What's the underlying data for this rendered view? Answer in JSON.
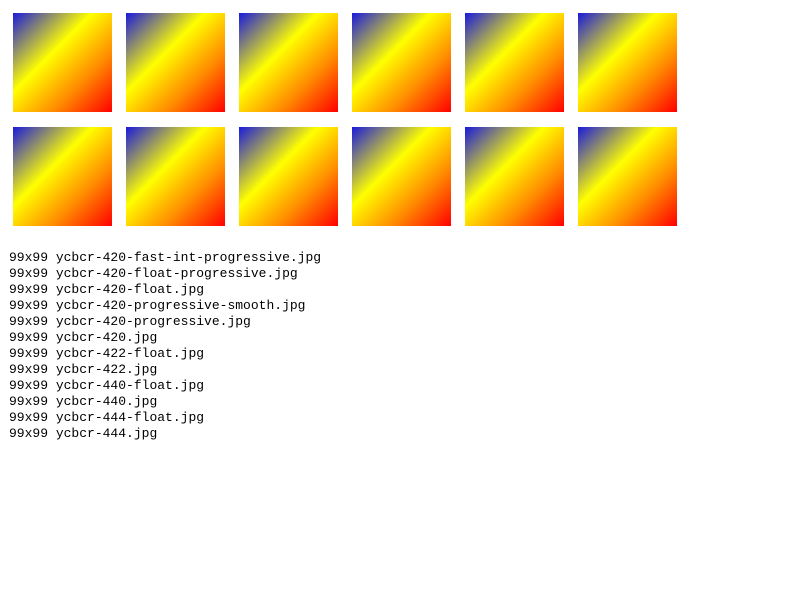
{
  "gradient": {
    "colors": [
      "#1a1adc",
      "#ffff00",
      "#ff8a00",
      "#ff0000"
    ]
  },
  "images": [
    {
      "icon": "gradient-image"
    },
    {
      "icon": "gradient-image"
    },
    {
      "icon": "gradient-image"
    },
    {
      "icon": "gradient-image"
    },
    {
      "icon": "gradient-image"
    },
    {
      "icon": "gradient-image"
    },
    {
      "icon": "gradient-image"
    },
    {
      "icon": "gradient-image"
    },
    {
      "icon": "gradient-image"
    },
    {
      "icon": "gradient-image"
    },
    {
      "icon": "gradient-image"
    },
    {
      "icon": "gradient-image"
    }
  ],
  "files": [
    {
      "size": "99x99",
      "name": "ycbcr-420-fast-int-progressive.jpg"
    },
    {
      "size": "99x99",
      "name": "ycbcr-420-float-progressive.jpg"
    },
    {
      "size": "99x99",
      "name": "ycbcr-420-float.jpg"
    },
    {
      "size": "99x99",
      "name": "ycbcr-420-progressive-smooth.jpg"
    },
    {
      "size": "99x99",
      "name": "ycbcr-420-progressive.jpg"
    },
    {
      "size": "99x99",
      "name": "ycbcr-420.jpg"
    },
    {
      "size": "99x99",
      "name": "ycbcr-422-float.jpg"
    },
    {
      "size": "99x99",
      "name": "ycbcr-422.jpg"
    },
    {
      "size": "99x99",
      "name": "ycbcr-440-float.jpg"
    },
    {
      "size": "99x99",
      "name": "ycbcr-440.jpg"
    },
    {
      "size": "99x99",
      "name": "ycbcr-444-float.jpg"
    },
    {
      "size": "99x99",
      "name": "ycbcr-444.jpg"
    }
  ]
}
